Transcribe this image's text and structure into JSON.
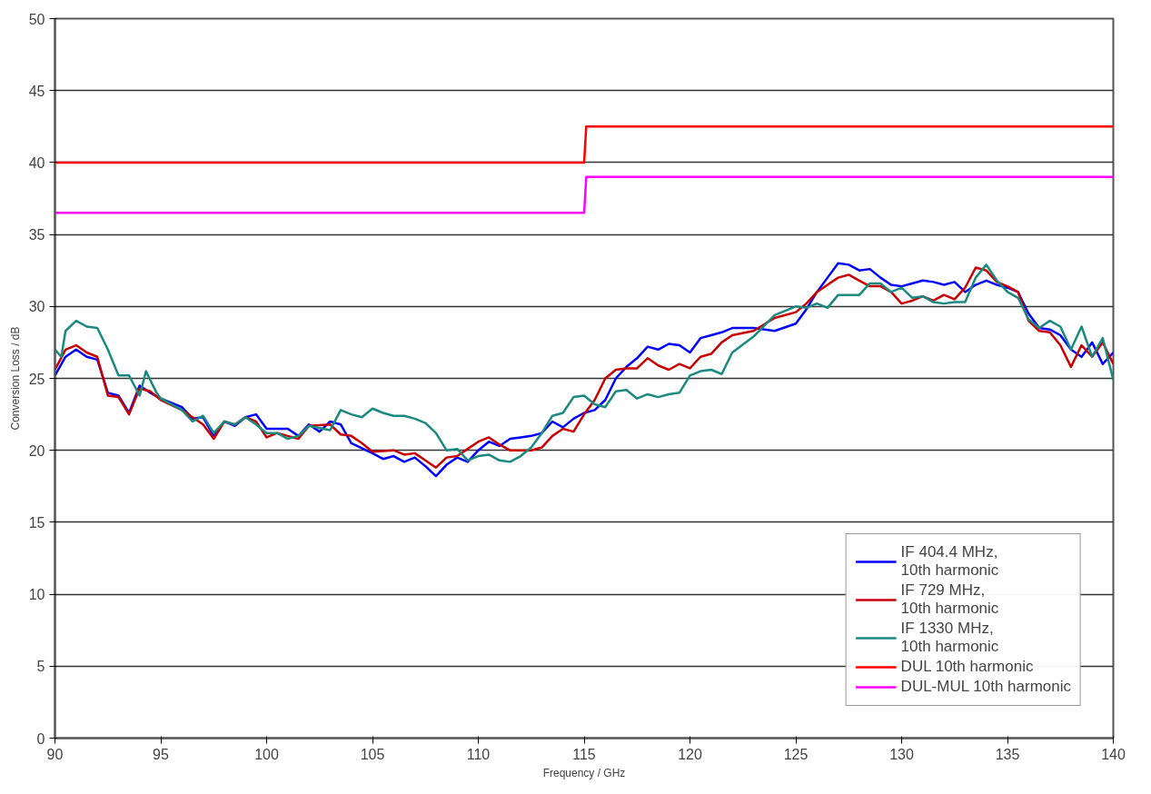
{
  "chart_data": {
    "type": "line",
    "xlabel": "Frequency / GHz",
    "ylabel": "Conversion Loss / dB",
    "xlim": [
      90,
      140
    ],
    "ylim": [
      0,
      50
    ],
    "xticks": [
      90,
      95,
      100,
      105,
      110,
      115,
      120,
      125,
      130,
      135,
      140
    ],
    "yticks": [
      0,
      5,
      10,
      15,
      20,
      25,
      30,
      35,
      40,
      45,
      50
    ],
    "grid": "y",
    "legend": "bottom right",
    "line_style": "solid",
    "marker": "none",
    "series": [
      {
        "name": "IF 404.4 MHz,\n10th harmonic",
        "color": "#0000ff",
        "x": [
          90,
          90.5,
          91,
          91.5,
          92,
          92.5,
          93,
          93.5,
          94,
          94.5,
          95,
          96,
          96.5,
          97,
          97.5,
          98,
          98.5,
          99,
          99.5,
          100,
          101,
          101.5,
          102,
          102.5,
          103,
          103.5,
          104,
          105,
          105.5,
          106,
          106.5,
          107,
          107.5,
          108,
          108.5,
          109,
          109.5,
          110,
          110.5,
          111,
          111.5,
          112,
          112.5,
          113,
          113.5,
          114,
          114.5,
          115,
          115.5,
          116,
          116.5,
          117,
          117.5,
          118,
          118.5,
          119,
          119.5,
          120,
          120.5,
          121,
          121.5,
          122,
          123,
          124,
          125,
          125.5,
          126,
          126.5,
          127,
          127.5,
          128,
          128.5,
          129,
          129.5,
          130,
          130.5,
          131,
          131.5,
          132,
          132.5,
          133,
          133.5,
          134,
          134.5,
          135,
          135.5,
          136,
          136.5,
          137,
          137.5,
          138,
          138.5,
          139,
          139.5,
          140
        ],
        "values": [
          25.2,
          26.5,
          27.0,
          26.5,
          26.3,
          24.0,
          23.8,
          22.6,
          24.5,
          24.0,
          23.6,
          23.0,
          22.2,
          22.3,
          21.0,
          22.0,
          21.7,
          22.3,
          22.5,
          21.5,
          21.5,
          21.0,
          21.8,
          21.3,
          22.0,
          21.8,
          20.5,
          19.8,
          19.4,
          19.6,
          19.2,
          19.5,
          18.9,
          18.2,
          19.0,
          19.5,
          19.2,
          20.0,
          20.6,
          20.3,
          20.8,
          20.9,
          21.0,
          21.2,
          22.0,
          21.6,
          22.2,
          22.6,
          22.8,
          23.5,
          25.0,
          25.8,
          26.4,
          27.2,
          27.0,
          27.4,
          27.3,
          26.8,
          27.8,
          28.0,
          28.2,
          28.5,
          28.5,
          28.3,
          28.8,
          29.8,
          31.0,
          32.0,
          33.0,
          32.9,
          32.5,
          32.6,
          32.0,
          31.5,
          31.4,
          31.6,
          31.8,
          31.7,
          31.5,
          31.7,
          31.0,
          31.5,
          31.8,
          31.5,
          31.3,
          31.0,
          29.5,
          28.5,
          28.4,
          28.0,
          27.0,
          26.5,
          27.5,
          26.0,
          26.8
        ]
      },
      {
        "name": "IF 729 MHz,\n10th harmonic",
        "color": "#c80000",
        "x": [
          90,
          90.5,
          91,
          91.5,
          92,
          92.5,
          93,
          93.5,
          94,
          94.5,
          95,
          96,
          96.5,
          97,
          97.5,
          98,
          98.5,
          99,
          99.5,
          100,
          100.5,
          101,
          101.5,
          102,
          103,
          103.5,
          104,
          104.5,
          105,
          106,
          106.5,
          107,
          107.5,
          108,
          108.5,
          109,
          109.5,
          110,
          110.5,
          111,
          111.5,
          112,
          112.5,
          113,
          113.5,
          114,
          114.5,
          115,
          115.5,
          116,
          116.5,
          117,
          117.5,
          118,
          118.5,
          119,
          119.5,
          120,
          120.5,
          121,
          121.5,
          122,
          123,
          124,
          125,
          125.5,
          126,
          126.5,
          127,
          127.5,
          128,
          128.5,
          129,
          129.5,
          130,
          130.5,
          131,
          131.5,
          132,
          132.5,
          133,
          133.5,
          134,
          134.5,
          135,
          135.5,
          136,
          136.5,
          137,
          137.5,
          138,
          138.5,
          139,
          139.5,
          140
        ],
        "values": [
          25.6,
          27.0,
          27.3,
          26.8,
          26.5,
          23.8,
          23.7,
          22.5,
          24.3,
          24.1,
          23.5,
          22.8,
          22.3,
          21.8,
          20.8,
          22.0,
          21.8,
          22.3,
          22.0,
          20.9,
          21.2,
          21.0,
          20.8,
          21.7,
          21.8,
          21.1,
          21.0,
          20.5,
          19.9,
          20.0,
          19.7,
          19.8,
          19.3,
          18.8,
          19.5,
          19.6,
          20.1,
          20.6,
          20.9,
          20.4,
          20.0,
          20.0,
          20.0,
          20.2,
          21.0,
          21.5,
          21.3,
          22.5,
          23.5,
          25.0,
          25.6,
          25.7,
          25.7,
          26.4,
          25.9,
          25.6,
          26.0,
          25.7,
          26.5,
          26.7,
          27.5,
          28.0,
          28.3,
          29.2,
          29.6,
          30.2,
          31.0,
          31.5,
          32.0,
          32.2,
          31.8,
          31.4,
          31.4,
          31.0,
          30.2,
          30.4,
          30.7,
          30.4,
          30.8,
          30.5,
          31.3,
          32.7,
          32.5,
          31.7,
          31.4,
          31.0,
          29.0,
          28.3,
          28.2,
          27.3,
          25.8,
          27.3,
          26.5,
          27.5,
          26.0
        ]
      },
      {
        "name": "IF 1330 MHz,\n10th harmonic",
        "color": "#1a8a80",
        "x": [
          90,
          90.3,
          90.5,
          91,
          91.5,
          92,
          92.5,
          93,
          93.5,
          94,
          94.3,
          94.8,
          95,
          96,
          96.5,
          97,
          97.5,
          98,
          98.5,
          99,
          99.5,
          100,
          100.5,
          101,
          101.5,
          102,
          103,
          103.5,
          104,
          104.5,
          105,
          105.5,
          106,
          106.5,
          107,
          107.5,
          108,
          108.5,
          109,
          109.5,
          110,
          110.5,
          111,
          111.5,
          112,
          112.5,
          113,
          113.5,
          114,
          114.5,
          115,
          115.5,
          116,
          116.5,
          117,
          117.5,
          118,
          118.5,
          119,
          119.5,
          120,
          120.5,
          121,
          121.5,
          122,
          123,
          124,
          125,
          125.5,
          126,
          126.5,
          127,
          128,
          128.5,
          129,
          129.5,
          130,
          130.5,
          131,
          131.5,
          132,
          132.5,
          133,
          133.5,
          134,
          134.5,
          135,
          135.5,
          136,
          136.5,
          137,
          137.5,
          138,
          138.5,
          139,
          139.5,
          140
        ],
        "values": [
          27.0,
          26.5,
          28.3,
          29.0,
          28.6,
          28.5,
          27.0,
          25.2,
          25.2,
          23.8,
          25.5,
          24.0,
          23.6,
          22.8,
          22.0,
          22.4,
          21.2,
          22.0,
          21.8,
          22.3,
          21.8,
          21.2,
          21.2,
          20.8,
          21.0,
          21.7,
          21.4,
          22.8,
          22.5,
          22.3,
          22.9,
          22.6,
          22.4,
          22.4,
          22.2,
          21.9,
          21.2,
          20.0,
          20.1,
          19.3,
          19.6,
          19.7,
          19.3,
          19.2,
          19.6,
          20.2,
          21.2,
          22.4,
          22.6,
          23.7,
          23.8,
          23.2,
          23.0,
          24.1,
          24.2,
          23.6,
          23.9,
          23.7,
          23.9,
          24.0,
          25.2,
          25.5,
          25.6,
          25.3,
          26.8,
          27.9,
          29.4,
          30.0,
          29.9,
          30.2,
          29.9,
          30.8,
          30.8,
          31.6,
          31.6,
          31.0,
          31.3,
          30.6,
          30.7,
          30.3,
          30.2,
          30.3,
          30.3,
          32.0,
          32.9,
          31.8,
          31.0,
          30.6,
          29.1,
          28.5,
          29.0,
          28.6,
          27.0,
          28.6,
          26.5,
          27.8,
          24.9
        ]
      },
      {
        "name": "DUL 10th harmonic",
        "color": "#ff0000",
        "x": [
          90,
          115,
          115.1,
          140
        ],
        "values": [
          40,
          40,
          42.5,
          42.5
        ]
      },
      {
        "name": "DUL-MUL 10th harmonic",
        "color": "#ff00ff",
        "x": [
          90,
          115,
          115.1,
          140
        ],
        "values": [
          36.5,
          36.5,
          39,
          39
        ]
      }
    ]
  }
}
